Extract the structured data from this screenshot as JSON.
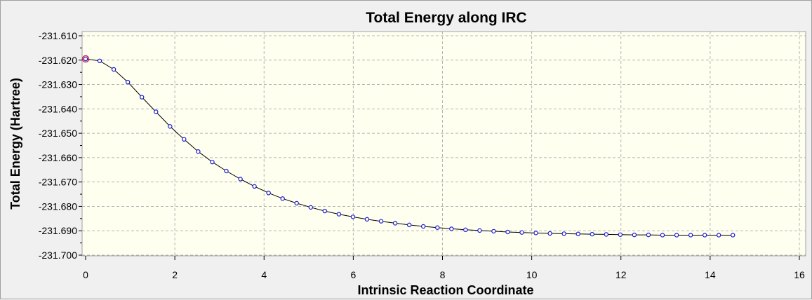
{
  "chart_data": {
    "type": "line",
    "title": "Total Energy along IRC",
    "xlabel": "Intrinsic Reaction Coordinate",
    "ylabel": "Total Energy (Hartree)",
    "xlim": [
      0,
      16
    ],
    "ylim": [
      -231.7,
      -231.61
    ],
    "xticks": [
      0,
      2,
      4,
      6,
      8,
      10,
      12,
      14,
      16
    ],
    "yticks": [
      -231.61,
      -231.62,
      -231.63,
      -231.64,
      -231.65,
      -231.66,
      -231.67,
      -231.68,
      -231.69,
      -231.7
    ],
    "xtick_labels": [
      "0",
      "2",
      "4",
      "6",
      "8",
      "10",
      "12",
      "14",
      "16"
    ],
    "ytick_labels": [
      "-231.610",
      "-231.620",
      "-231.630",
      "-231.640",
      "-231.650",
      "-231.660",
      "-231.670",
      "-231.680",
      "-231.690",
      "-231.700"
    ],
    "grid": true,
    "colors": {
      "plot_background": "#fffff0",
      "line": "#000000",
      "marker_stroke": "#1a1acc",
      "highlight_marker": "#cc2255",
      "grid": "#b4b4b4"
    },
    "series": [
      {
        "x": [
          0.0,
          0.315,
          0.631,
          0.946,
          1.262,
          1.577,
          1.893,
          2.208,
          2.523,
          2.839,
          3.154,
          3.47,
          3.785,
          4.101,
          4.416,
          4.731,
          5.047,
          5.362,
          5.678,
          5.993,
          6.308,
          6.624,
          6.939,
          7.255,
          7.57,
          7.886,
          8.201,
          8.516,
          8.832,
          9.147,
          9.463,
          9.778,
          10.093,
          10.409,
          10.724,
          11.04,
          11.355,
          11.671,
          11.986,
          12.301,
          12.617,
          12.932,
          13.248,
          13.563,
          13.879,
          14.194,
          14.509
        ],
        "y": [
          -231.6195,
          -231.6203,
          -231.6238,
          -231.629,
          -231.6352,
          -231.6412,
          -231.6472,
          -231.6525,
          -231.6575,
          -231.6618,
          -231.6655,
          -231.6688,
          -231.6718,
          -231.6745,
          -231.6768,
          -231.6787,
          -231.6804,
          -231.6819,
          -231.6832,
          -231.6843,
          -231.6853,
          -231.6861,
          -231.6869,
          -231.6876,
          -231.6882,
          -231.6887,
          -231.6892,
          -231.6896,
          -231.6899,
          -231.6902,
          -231.6905,
          -231.6907,
          -231.6909,
          -231.6911,
          -231.6912,
          -231.6913,
          -231.6914,
          -231.6915,
          -231.6916,
          -231.6917,
          -231.6917,
          -231.6918,
          -231.6918,
          -231.6918,
          -231.6918,
          -231.6918,
          -231.6918
        ]
      }
    ],
    "highlighted_point_index": 0
  }
}
